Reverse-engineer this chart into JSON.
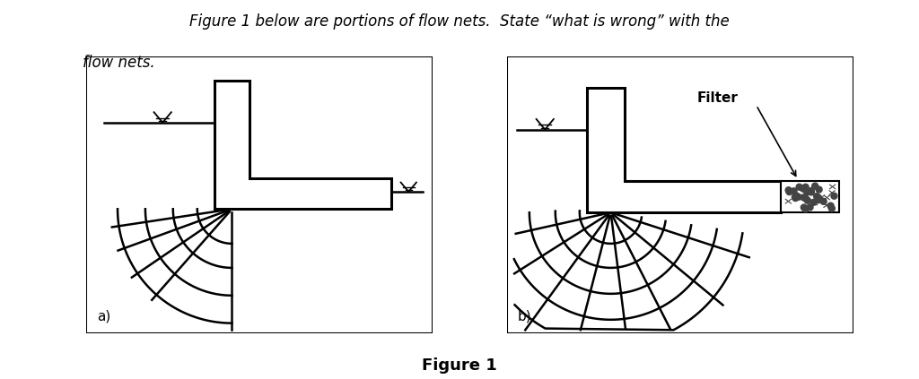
{
  "title_line1": "Figure 1 below are portions of flow nets.  State “what is wrong” with the",
  "title_line2": "flow nets.",
  "figure_caption": "Figure 1",
  "label_a": "a)",
  "label_b": "b)",
  "filter_label": "Filter",
  "bg_color": "#ffffff",
  "line_color": "#000000",
  "title_fontsize": 12,
  "caption_fontsize": 13
}
